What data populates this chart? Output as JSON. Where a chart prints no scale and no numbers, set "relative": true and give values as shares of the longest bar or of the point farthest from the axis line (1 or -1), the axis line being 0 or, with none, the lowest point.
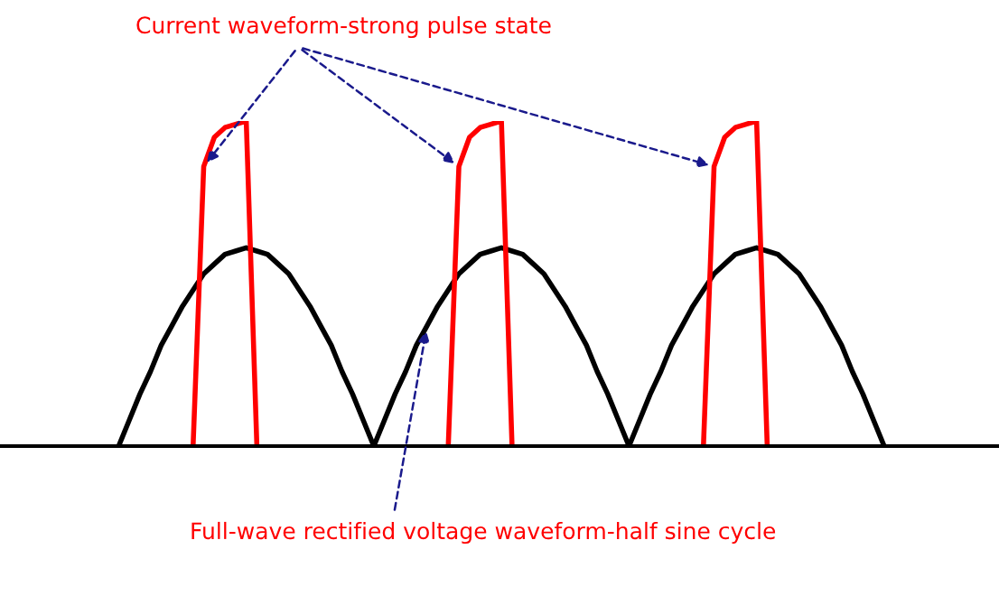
{
  "chart_data": {
    "type": "line",
    "relative": true,
    "categories": [
      null,
      null,
      null,
      null,
      null,
      null,
      null,
      null,
      null,
      null,
      null,
      null,
      null,
      null,
      null,
      null,
      null,
      null,
      null,
      null,
      null,
      null,
      null,
      null,
      null,
      null,
      null,
      null,
      null,
      null,
      null,
      null,
      null,
      null,
      null,
      null,
      null,
      null,
      null,
      null,
      null,
      null,
      null,
      null,
      null,
      null,
      null,
      null,
      null,
      null,
      null,
      null,
      null,
      null,
      null,
      null,
      null,
      null,
      null,
      null,
      null,
      null,
      null,
      null,
      null,
      null,
      null,
      null,
      null,
      null,
      null,
      null,
      null
    ],
    "series": [
      {
        "color": "#000000",
        "values": [
          0,
          0.08,
          0.16,
          0.23,
          0.31,
          0.37,
          0.43,
          0.48,
          0.53,
          0.56,
          0.59,
          0.6,
          0.61,
          0.6,
          0.59,
          0.56,
          0.53,
          0.48,
          0.43,
          0.37,
          0.31,
          0.23,
          0.16,
          0.08,
          0,
          0.08,
          0.16,
          0.23,
          0.31,
          0.37,
          0.43,
          0.48,
          0.53,
          0.56,
          0.59,
          0.6,
          0.61,
          0.6,
          0.59,
          0.56,
          0.53,
          0.48,
          0.43,
          0.37,
          0.31,
          0.23,
          0.16,
          0.08,
          0,
          0.08,
          0.16,
          0.23,
          0.31,
          0.37,
          0.43,
          0.48,
          0.53,
          0.56,
          0.59,
          0.6,
          0.61,
          0.6,
          0.59,
          0.56,
          0.53,
          0.48,
          0.43,
          0.37,
          0.31,
          0.23,
          0.16,
          0.08,
          0
        ]
      },
      {
        "color": "#ff0000",
        "values": [
          null,
          null,
          null,
          null,
          null,
          null,
          null,
          0,
          0.86,
          0.95,
          0.98,
          0.99,
          1,
          0,
          null,
          null,
          null,
          null,
          null,
          null,
          null,
          null,
          null,
          null,
          null,
          null,
          null,
          null,
          null,
          null,
          null,
          0,
          0.86,
          0.95,
          0.98,
          0.99,
          1,
          0,
          null,
          null,
          null,
          null,
          null,
          null,
          null,
          null,
          null,
          null,
          null,
          null,
          null,
          null,
          null,
          null,
          null,
          0,
          0.86,
          0.95,
          0.98,
          0.99,
          1,
          0,
          null,
          null,
          null,
          null,
          null,
          null,
          null,
          null,
          null,
          null,
          null
        ]
      }
    ],
    "annotations": [
      "Current waveform-strong pulse state",
      "Full-wave rectified voltage waveform-half sine cycle"
    ]
  }
}
